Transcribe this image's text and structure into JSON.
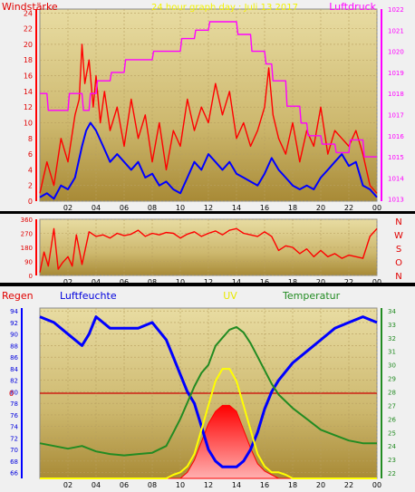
{
  "chart_data": [
    {
      "type": "line",
      "title": "24 hour graph day : Juli 13 2017",
      "ylabel_left": "Windstärke",
      "ylabel_right": "Luftdruck",
      "x_ticks": [
        "02",
        "04",
        "06",
        "08",
        "10",
        "12",
        "14",
        "16",
        "18",
        "20",
        "22",
        "00"
      ],
      "y_left_ticks": [
        0,
        2,
        4,
        6,
        8,
        10,
        12,
        14,
        16,
        18,
        20,
        22,
        24
      ],
      "y_left_lim": [
        0,
        24.5
      ],
      "y_right_ticks": [
        1013,
        1014,
        1015,
        1016,
        1017,
        1018,
        1019,
        1020,
        1021,
        1022
      ],
      "y_right_lim": [
        1012.9,
        1022
      ],
      "series": [
        {
          "color": "#ff0000",
          "axis": "left",
          "x": [
            0,
            0.5,
            1,
            1.5,
            2,
            2.5,
            2.8,
            3,
            3.2,
            3.5,
            3.8,
            4,
            4.3,
            4.6,
            5,
            5.5,
            6,
            6.5,
            7,
            7.5,
            8,
            8.5,
            9,
            9.5,
            10,
            10.5,
            11,
            11.5,
            12,
            12.5,
            13,
            13.5,
            14,
            14.5,
            15,
            15.5,
            16,
            16.3,
            16.6,
            17,
            17.5,
            18,
            18.5,
            19,
            19.5,
            20,
            20.5,
            21,
            21.5,
            22,
            22.5,
            23,
            23.5,
            24
          ],
          "values": [
            1,
            5,
            2,
            8,
            5,
            11,
            13,
            20,
            15,
            18,
            12,
            16,
            10,
            14,
            9,
            12,
            7,
            13,
            8,
            11,
            5,
            10,
            4,
            9,
            7,
            13,
            9,
            12,
            10,
            15,
            11,
            14,
            8,
            10,
            7,
            9,
            12,
            17,
            11,
            8,
            6,
            10,
            5,
            9,
            7,
            12,
            6,
            9,
            8,
            7,
            9,
            6,
            2,
            1
          ]
        },
        {
          "color": "#0000ff",
          "axis": "left",
          "x": [
            0,
            0.5,
            1,
            1.5,
            2,
            2.5,
            3,
            3.3,
            3.6,
            4,
            4.5,
            5,
            5.5,
            6,
            6.5,
            7,
            7.5,
            8,
            8.5,
            9,
            9.5,
            10,
            10.5,
            11,
            11.5,
            12,
            12.5,
            13,
            13.5,
            14,
            14.5,
            15,
            15.5,
            16,
            16.5,
            17,
            17.5,
            18,
            18.5,
            19,
            19.5,
            20,
            20.5,
            21,
            21.5,
            22,
            22.5,
            23,
            23.5,
            24
          ],
          "values": [
            0.5,
            1,
            0.3,
            2,
            1.5,
            3,
            7,
            9,
            10,
            9,
            7,
            5,
            6,
            5,
            4,
            5,
            3,
            3.5,
            2,
            2.5,
            1.5,
            1,
            3,
            5,
            4,
            6,
            5,
            4,
            5,
            3.5,
            3,
            2.5,
            2,
            3.5,
            5.5,
            4,
            3,
            2,
            1.5,
            2,
            1.5,
            3,
            4,
            5,
            6,
            4.5,
            5,
            2,
            1.5,
            0.5
          ]
        },
        {
          "color": "#ff00ff",
          "axis": "right",
          "x": [
            0,
            0.5,
            0.6,
            2,
            2.1,
            3,
            3.1,
            3.5,
            3.6,
            4,
            4.1,
            5,
            5.1,
            6,
            6.1,
            8,
            8.1,
            10,
            10.1,
            11,
            11.1,
            12,
            12.1,
            14,
            14.1,
            15,
            15.1,
            16,
            16.1,
            16.5,
            16.6,
            17.5,
            17.6,
            18.5,
            18.6,
            19,
            19.1,
            20,
            20.1,
            21,
            21.1,
            22,
            22.1,
            23,
            23.1,
            24
          ],
          "values": [
            1018,
            1018,
            1017.2,
            1017.2,
            1018,
            1018,
            1017.2,
            1017.2,
            1018,
            1018,
            1018.6,
            1018.6,
            1019,
            1019,
            1019.6,
            1019.6,
            1020,
            1020,
            1020.6,
            1020.6,
            1021,
            1021,
            1021.4,
            1021.4,
            1020.8,
            1020.8,
            1020,
            1020,
            1019.4,
            1019.4,
            1018.6,
            1018.6,
            1017.4,
            1017.4,
            1016.6,
            1016.6,
            1016,
            1016,
            1015.6,
            1015.6,
            1015.2,
            1015.2,
            1015.8,
            1015.8,
            1015,
            1015
          ]
        }
      ]
    },
    {
      "type": "line",
      "title": "",
      "y_left_ticks": [
        0,
        90,
        180,
        270,
        360
      ],
      "y_left_lim": [
        0,
        360
      ],
      "direction_labels": [
        "N",
        "W",
        "S",
        "O",
        "N"
      ],
      "series": [
        {
          "color": "#ff0000",
          "x": [
            0,
            0.3,
            0.6,
            1,
            1.3,
            1.6,
            2,
            2.3,
            2.6,
            3,
            3.5,
            4,
            4.5,
            5,
            5.5,
            6,
            6.5,
            7,
            7.5,
            8,
            8.5,
            9,
            9.5,
            10,
            10.5,
            11,
            11.5,
            12,
            12.5,
            13,
            13.5,
            14,
            14.5,
            15,
            15.5,
            16,
            16.5,
            17,
            17.5,
            18,
            18.5,
            19,
            19.5,
            20,
            20.5,
            21,
            21.5,
            22,
            22.5,
            23,
            23.5,
            24
          ],
          "values": [
            20,
            150,
            60,
            300,
            40,
            80,
            120,
            60,
            260,
            70,
            280,
            250,
            260,
            240,
            270,
            255,
            265,
            290,
            250,
            270,
            260,
            275,
            270,
            240,
            265,
            280,
            250,
            270,
            285,
            260,
            290,
            300,
            270,
            260,
            250,
            280,
            250,
            160,
            190,
            180,
            140,
            170,
            120,
            160,
            120,
            140,
            110,
            130,
            120,
            110,
            250,
            300
          ]
        }
      ]
    },
    {
      "type": "line",
      "title": "",
      "ylabel_left": "Regen",
      "label_humidity": "Luftfeuchte",
      "label_uv": "UV",
      "ylabel_right": "Temperatur",
      "rain_ticks": [
        0
      ],
      "y_left_ticks": [
        66,
        68,
        70,
        72,
        74,
        76,
        78,
        80,
        82,
        84,
        86,
        88,
        90,
        92,
        94
      ],
      "y_left_lim": [
        65,
        94.5
      ],
      "y_right_ticks": [
        22,
        23,
        24,
        25,
        26,
        27,
        28,
        29,
        30,
        31,
        32,
        33,
        34
      ],
      "y_right_lim": [
        21.6,
        34.2
      ],
      "series": [
        {
          "color": "#0000ff",
          "axis": "left",
          "x": [
            0,
            1,
            2,
            3,
            3.5,
            4,
            5,
            6,
            7,
            8,
            9,
            9.5,
            10,
            10.5,
            11,
            11.5,
            12,
            12.5,
            13,
            13.5,
            14,
            14.5,
            15,
            15.5,
            16,
            16.5,
            17,
            18,
            19,
            20,
            21,
            22,
            23,
            24
          ],
          "values": [
            93,
            92,
            90,
            88,
            90,
            93,
            91,
            91,
            91,
            92,
            89,
            86,
            83,
            80,
            78,
            74,
            70,
            68,
            67,
            67,
            67,
            68,
            70,
            73,
            77,
            80,
            82,
            85,
            87,
            89,
            91,
            92,
            93,
            92
          ]
        },
        {
          "color": "#228b22",
          "axis": "right",
          "x": [
            0,
            1,
            2,
            3,
            4,
            5,
            6,
            7,
            8,
            9,
            9.5,
            10,
            10.5,
            11,
            11.5,
            12,
            12.5,
            13,
            13.5,
            14,
            14.5,
            15,
            15.5,
            16,
            16.5,
            17,
            18,
            19,
            20,
            21,
            22,
            23,
            24
          ],
          "values": [
            24.2,
            24,
            23.8,
            24,
            23.6,
            23.4,
            23.3,
            23.4,
            23.5,
            24,
            25,
            26,
            27.2,
            28.4,
            29.4,
            30,
            31.4,
            32,
            32.6,
            32.8,
            32.4,
            31.6,
            30.6,
            29.6,
            28.6,
            27.8,
            26.8,
            26,
            25.2,
            24.8,
            24.4,
            24.2,
            24.2
          ]
        },
        {
          "color": "#ffff00",
          "axis": "uv",
          "x": [
            0,
            9,
            9.5,
            10,
            10.5,
            11,
            11.5,
            12,
            12.5,
            13,
            13.5,
            14,
            14.5,
            15,
            15.5,
            16,
            16.5,
            17,
            17.5,
            18,
            19,
            24
          ],
          "values": [
            0,
            0,
            0.3,
            0.5,
            1,
            2,
            4,
            6,
            8,
            9,
            9,
            8,
            6,
            4,
            2,
            1,
            0.5,
            0.5,
            0.3,
            0,
            0,
            0
          ]
        },
        {
          "color": "#ff0000",
          "axis": "uv",
          "x": [
            0,
            10,
            10.5,
            11,
            11.5,
            12,
            12.5,
            13,
            13.5,
            14,
            14.5,
            15,
            15.5,
            16,
            16.5,
            17,
            24
          ],
          "values": [
            0,
            0,
            0.5,
            1.5,
            3,
            4.5,
            5.5,
            6,
            6,
            5.5,
            4,
            2.5,
            1.2,
            0.6,
            0.3,
            0,
            0
          ]
        }
      ]
    }
  ]
}
